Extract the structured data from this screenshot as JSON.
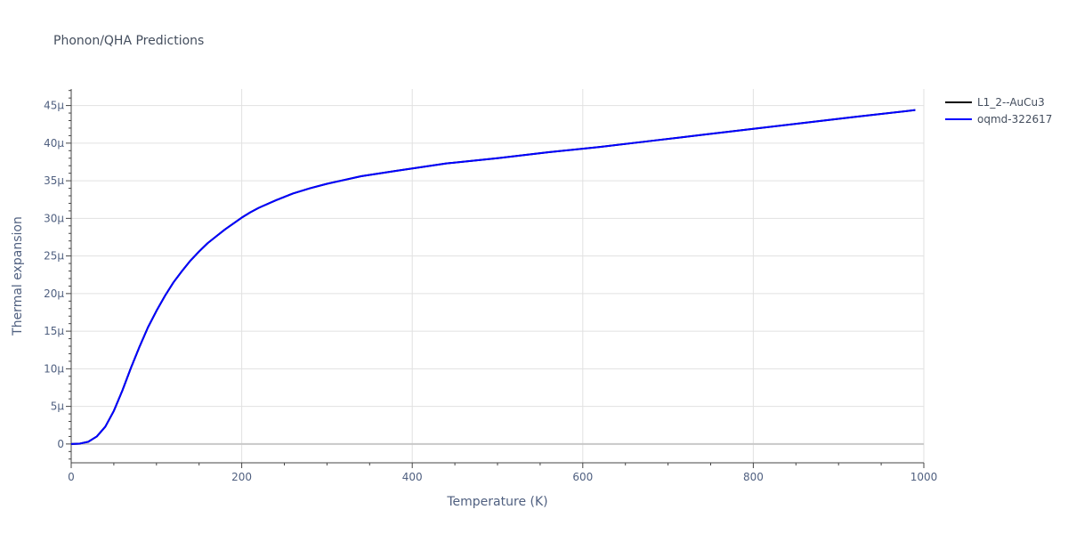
{
  "chart_data": {
    "type": "line",
    "title": "Phonon/QHA Predictions",
    "xlabel": "Temperature (K)",
    "ylabel": "Thermal expansion",
    "xlim": [
      0,
      1000
    ],
    "ylim": [
      -2.5e-06,
      4.72e-05
    ],
    "x_ticks": [
      0,
      200,
      400,
      600,
      800,
      1000
    ],
    "x_tick_labels": [
      "0",
      "200",
      "400",
      "600",
      "800",
      "1000"
    ],
    "y_ticks": [
      0,
      5e-06,
      1e-05,
      1.5e-05,
      2e-05,
      2.5e-05,
      3e-05,
      3.5e-05,
      4e-05,
      4.5e-05
    ],
    "y_tick_labels": [
      "0",
      "5μ",
      "10μ",
      "15μ",
      "20μ",
      "25μ",
      "30μ",
      "35μ",
      "40μ",
      "45μ"
    ],
    "grid": true,
    "legend_position": "top-right",
    "x": [
      0,
      10,
      20,
      30,
      40,
      50,
      60,
      70,
      80,
      90,
      100,
      110,
      120,
      130,
      140,
      150,
      160,
      170,
      180,
      190,
      200,
      210,
      220,
      240,
      260,
      280,
      300,
      340,
      380,
      440,
      500,
      560,
      620,
      680,
      740,
      800,
      860,
      920,
      990
    ],
    "series": [
      {
        "name": "L1_2--AuCu3",
        "color": "#000000",
        "values": [
          0,
          5e-08,
          3e-07,
          1e-06,
          2.3e-06,
          4.4e-06,
          7.1e-06,
          1.01e-05,
          1.29e-05,
          1.55e-05,
          1.77e-05,
          1.97e-05,
          2.15e-05,
          2.3e-05,
          2.44e-05,
          2.56e-05,
          2.67e-05,
          2.76e-05,
          2.85e-05,
          2.93e-05,
          3.01e-05,
          3.08e-05,
          3.14e-05,
          3.24e-05,
          3.33e-05,
          3.4e-05,
          3.46e-05,
          3.56e-05,
          3.63e-05,
          3.73e-05,
          3.8e-05,
          3.88e-05,
          3.95e-05,
          4.03e-05,
          4.11e-05,
          4.19e-05,
          4.27e-05,
          4.35e-05,
          4.44e-05
        ]
      },
      {
        "name": "oqmd-322617",
        "color": "#0000ff",
        "values": [
          0,
          5e-08,
          3e-07,
          1e-06,
          2.3e-06,
          4.4e-06,
          7.1e-06,
          1.01e-05,
          1.29e-05,
          1.55e-05,
          1.77e-05,
          1.97e-05,
          2.15e-05,
          2.3e-05,
          2.44e-05,
          2.56e-05,
          2.67e-05,
          2.76e-05,
          2.85e-05,
          2.93e-05,
          3.01e-05,
          3.08e-05,
          3.14e-05,
          3.24e-05,
          3.33e-05,
          3.4e-05,
          3.46e-05,
          3.56e-05,
          3.63e-05,
          3.73e-05,
          3.8e-05,
          3.88e-05,
          3.95e-05,
          4.03e-05,
          4.11e-05,
          4.19e-05,
          4.27e-05,
          4.35e-05,
          4.44e-05
        ]
      }
    ]
  }
}
